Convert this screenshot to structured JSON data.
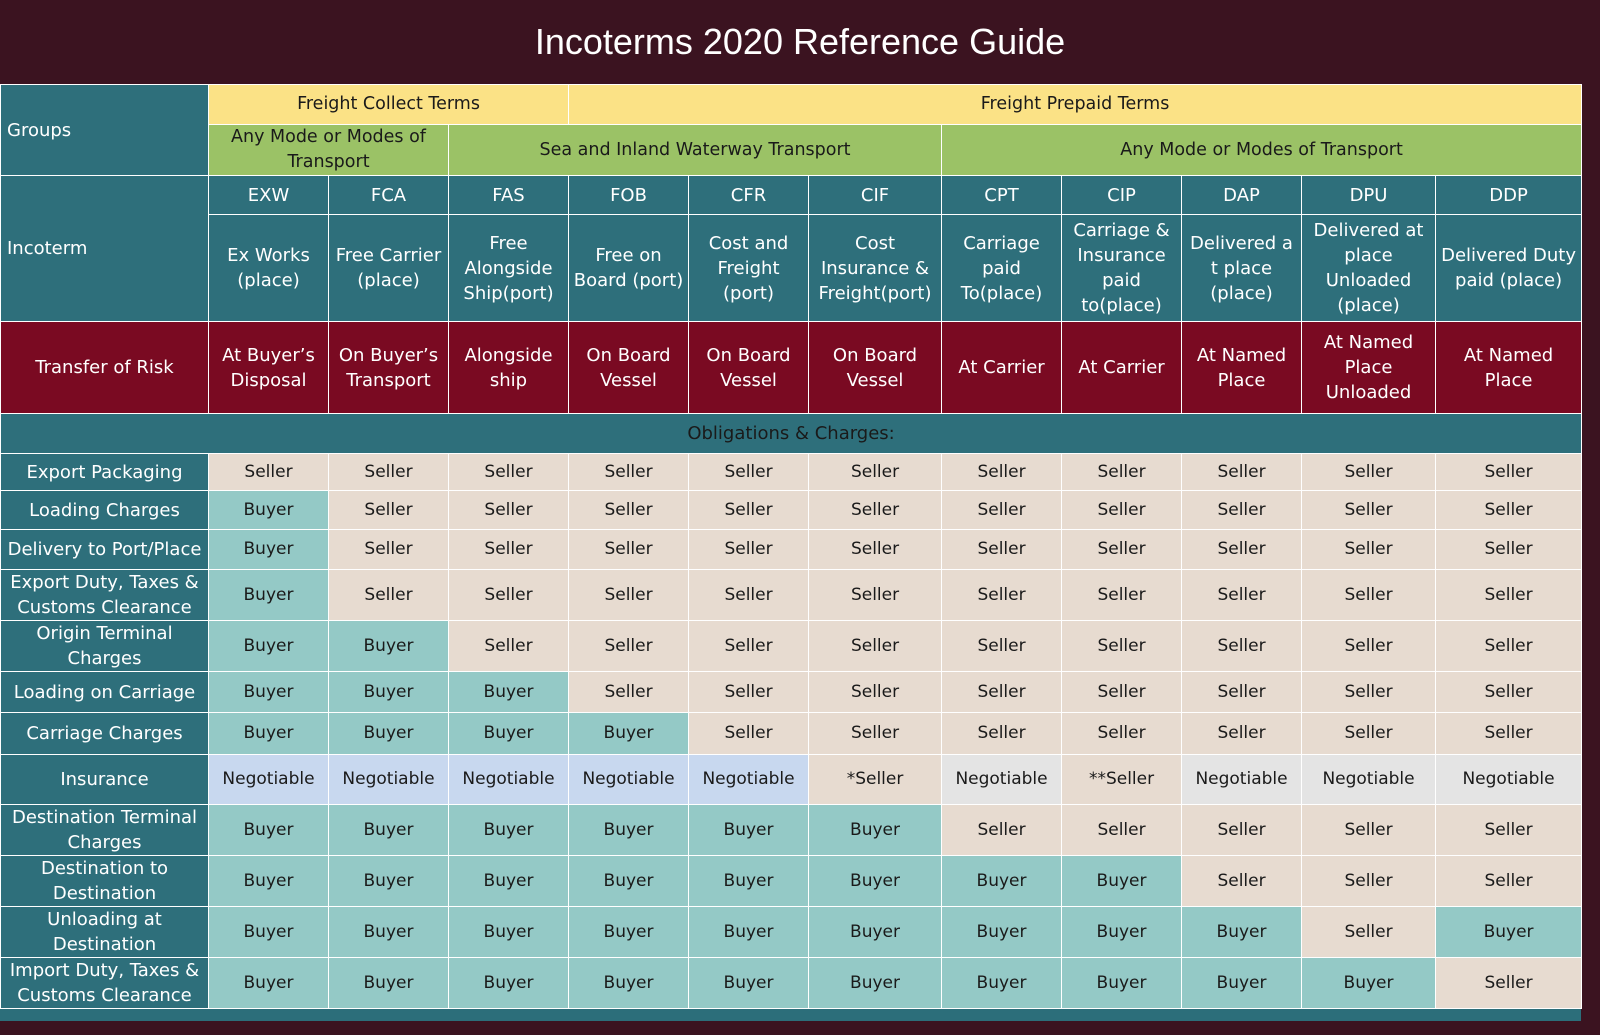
{
  "title": "Incoterms 2020 Reference Guide",
  "header": {
    "groups_label": "Groups",
    "freight_collect": "Freight Collect Terms",
    "freight_prepaid": "Freight Prepaid Terms",
    "mode_any_1": "Any Mode or Modes of Transport",
    "mode_sea": "Sea and Inland Waterway Transport",
    "mode_any_2": "Any Mode or Modes of Transport",
    "incoterm_label": "Incoterm",
    "transfer_of_risk_label": "Transfer of Risk",
    "obligations_label": "Obligations & Charges:"
  },
  "terms": [
    {
      "code": "EXW",
      "name": "Ex Works (place)",
      "risk": "At Buyer’s Disposal"
    },
    {
      "code": "FCA",
      "name": "Free Carrier (place)",
      "risk": "On Buyer’s Transport"
    },
    {
      "code": "FAS",
      "name": "Free Alongside Ship(port)",
      "risk": "Alongside ship"
    },
    {
      "code": "FOB",
      "name": "Free on Board (port)",
      "risk": "On Board Vessel"
    },
    {
      "code": "CFR",
      "name": "Cost and Freight (port)",
      "risk": "On Board Vessel"
    },
    {
      "code": "CIF",
      "name": "Cost Insurance & Freight(port)",
      "risk": "On Board Vessel"
    },
    {
      "code": "CPT",
      "name": "Carriage paid To(place)",
      "risk": "At Carrier"
    },
    {
      "code": "CIP",
      "name": "Carriage & Insurance paid to(place)",
      "risk": "At Carrier"
    },
    {
      "code": "DAP",
      "name": "Delivered a t place (place)",
      "risk": "At Named Place"
    },
    {
      "code": "DPU",
      "name": "Delivered at place Unloaded (place)",
      "risk": "At Named Place Unloaded"
    },
    {
      "code": "DDP",
      "name": "Delivered Duty paid (place)",
      "risk": "At Named Place"
    }
  ],
  "obligations": [
    {
      "label": "Export Packaging",
      "values": [
        "Seller",
        "Seller",
        "Seller",
        "Seller",
        "Seller",
        "Seller",
        "Seller",
        "Seller",
        "Seller",
        "Seller",
        "Seller"
      ]
    },
    {
      "label": "Loading Charges",
      "values": [
        "Buyer",
        "Seller",
        "Seller",
        "Seller",
        "Seller",
        "Seller",
        "Seller",
        "Seller",
        "Seller",
        "Seller",
        "Seller"
      ]
    },
    {
      "label": "Delivery to Port/Place",
      "values": [
        "Buyer",
        "Seller",
        "Seller",
        "Seller",
        "Seller",
        "Seller",
        "Seller",
        "Seller",
        "Seller",
        "Seller",
        "Seller"
      ]
    },
    {
      "label": "Export Duty, Taxes & Customs Clearance",
      "values": [
        "Buyer",
        "Seller",
        "Seller",
        "Seller",
        "Seller",
        "Seller",
        "Seller",
        "Seller",
        "Seller",
        "Seller",
        "Seller"
      ]
    },
    {
      "label": "Origin Terminal Charges",
      "values": [
        "Buyer",
        "Buyer",
        "Seller",
        "Seller",
        "Seller",
        "Seller",
        "Seller",
        "Seller",
        "Seller",
        "Seller",
        "Seller"
      ]
    },
    {
      "label": "Loading on Carriage",
      "values": [
        "Buyer",
        "Buyer",
        "Buyer",
        "Seller",
        "Seller",
        "Seller",
        "Seller",
        "Seller",
        "Seller",
        "Seller",
        "Seller"
      ]
    },
    {
      "label": "Carriage Charges",
      "values": [
        "Buyer",
        "Buyer",
        "Buyer",
        "Buyer",
        "Seller",
        "Seller",
        "Seller",
        "Seller",
        "Seller",
        "Seller",
        "Seller"
      ]
    },
    {
      "label": "Insurance",
      "values": [
        "Negotiable",
        "Negotiable",
        "Negotiable",
        "Negotiable",
        "Negotiable",
        "*Seller",
        "Negotiable",
        "**Seller",
        "Negotiable",
        "Negotiable",
        "Negotiable"
      ]
    },
    {
      "label": "Destination Terminal Charges",
      "values": [
        "Buyer",
        "Buyer",
        "Buyer",
        "Buyer",
        "Buyer",
        "Buyer",
        "Seller",
        "Seller",
        "Seller",
        "Seller",
        "Seller"
      ]
    },
    {
      "label": "Destination to Destination",
      "values": [
        "Buyer",
        "Buyer",
        "Buyer",
        "Buyer",
        "Buyer",
        "Buyer",
        "Buyer",
        "Buyer",
        "Seller",
        "Seller",
        "Seller"
      ]
    },
    {
      "label": "Unloading at Destination",
      "values": [
        "Buyer",
        "Buyer",
        "Buyer",
        "Buyer",
        "Buyer",
        "Buyer",
        "Buyer",
        "Buyer",
        "Buyer",
        "Seller",
        "Buyer"
      ]
    },
    {
      "label": "Import Duty, Taxes & Customs Clearance",
      "values": [
        "Buyer",
        "Buyer",
        "Buyer",
        "Buyer",
        "Buyer",
        "Buyer",
        "Buyer",
        "Buyer",
        "Buyer",
        "Buyer",
        "Seller"
      ]
    }
  ],
  "colors": {
    "seller": "#e7dbd0",
    "buyer": "#94c9c6",
    "negotiable_sea": "#c8d8ef",
    "negotiable_any": "#e4e4e4",
    "risk": "#7a0a22",
    "header_teal": "#2e6f7b",
    "freight_yellow": "#fbe286",
    "mode_green": "#9bc266",
    "background": "#3b1320"
  }
}
